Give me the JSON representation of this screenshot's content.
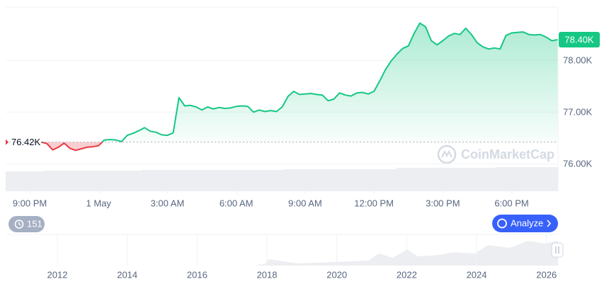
{
  "chart_data": [
    {
      "type": "baseline-line",
      "x": [
        0.5,
        0.75,
        1,
        1.25,
        1.5,
        1.75,
        2,
        2.25,
        2.5,
        2.75,
        3,
        3.25,
        3.5,
        3.75,
        4,
        4.25,
        4.5,
        4.75,
        5,
        5.25,
        5.5,
        5.75,
        6,
        6.25,
        6.5,
        6.75,
        7,
        7.25,
        7.5,
        7.75,
        8,
        8.25,
        8.5,
        8.75,
        9,
        9.25,
        9.5,
        9.75,
        10,
        10.25,
        10.5,
        10.75,
        11,
        11.25,
        11.5,
        11.75,
        12,
        12.25,
        12.5,
        12.75,
        13,
        13.25,
        13.5,
        13.75,
        14,
        14.25,
        14.5,
        14.75,
        15,
        15.25,
        15.5,
        15.75,
        16,
        16.25,
        16.5,
        16.75,
        17,
        17.25,
        17.5,
        17.75,
        18,
        18.25,
        18.5,
        18.75,
        19,
        19.25,
        19.5,
        19.75,
        20,
        20.25,
        20.5,
        20.75,
        21,
        21.25,
        21.5,
        21.75,
        22,
        22.25,
        22.5,
        22.75,
        23
      ],
      "values": [
        76.42,
        76.39,
        76.27,
        76.32,
        76.4,
        76.3,
        76.26,
        76.29,
        76.32,
        76.33,
        76.35,
        76.46,
        76.47,
        76.46,
        76.43,
        76.55,
        76.59,
        76.64,
        76.7,
        76.63,
        76.61,
        76.56,
        76.55,
        76.6,
        77.28,
        77.12,
        77.13,
        77.1,
        77.04,
        77.1,
        77.06,
        77.09,
        77.07,
        77.08,
        77.11,
        77.12,
        77.11,
        77.0,
        77.04,
        77.01,
        77.03,
        77.01,
        77.1,
        77.3,
        77.4,
        77.34,
        77.35,
        77.36,
        77.34,
        77.33,
        77.22,
        77.25,
        77.37,
        77.33,
        77.31,
        77.37,
        77.38,
        77.35,
        77.4,
        77.6,
        77.82,
        77.99,
        78.12,
        78.23,
        78.28,
        78.52,
        78.72,
        78.65,
        78.38,
        78.3,
        78.38,
        78.47,
        78.52,
        78.5,
        78.62,
        78.5,
        78.34,
        78.26,
        78.22,
        78.24,
        78.22,
        78.48,
        78.53,
        78.54,
        78.55,
        78.5,
        78.49,
        78.5,
        78.45,
        78.38,
        78.4
      ],
      "baseline": {
        "value": 76.42,
        "label": "76.42K"
      },
      "last_price": {
        "value": 78.4,
        "label": "78.40K"
      },
      "colors": {
        "up": "#16c784",
        "down": "#ea3943"
      },
      "xlim": [
        -1.05,
        23.02
      ],
      "xticks": [
        {
          "value": 0,
          "label": "9:00 PM"
        },
        {
          "value": 3,
          "label": "1 May"
        },
        {
          "value": 6,
          "label": "3:00 AM"
        },
        {
          "value": 9,
          "label": "6:00 AM"
        },
        {
          "value": 12,
          "label": "9:00 AM"
        },
        {
          "value": 15,
          "label": "12:00 PM"
        },
        {
          "value": 18,
          "label": "3:00 PM"
        },
        {
          "value": 21,
          "label": "6:00 PM"
        }
      ],
      "ylim": [
        75.47,
        79.03
      ],
      "yticks": [
        {
          "value": 76,
          "label": "76.00K"
        },
        {
          "value": 77,
          "label": "77.00K"
        },
        {
          "value": 78,
          "label": "78.00K"
        }
      ],
      "watermark": "CoinMarketCap"
    },
    {
      "type": "overview",
      "xlim": [
        2010.52,
        2026.33
      ],
      "xticks": [
        2012,
        2014,
        2016,
        2018,
        2020,
        2022,
        2024,
        2026
      ]
    }
  ],
  "controls": {
    "history_count": 151,
    "analyze_button": "Analyze"
  }
}
